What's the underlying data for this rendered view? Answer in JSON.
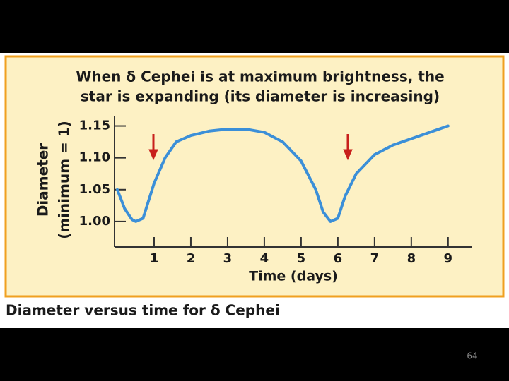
{
  "chart_data": {
    "type": "line",
    "title_lines": [
      "When δ Cephei is at maximum brightness, the",
      "star is expanding (its diameter is increasing)"
    ],
    "x_label": "Time (days)",
    "y_label_lines": [
      "Diameter",
      "(minimum = 1)"
    ],
    "x": [
      0,
      0.2,
      0.4,
      0.5,
      0.7,
      1.0,
      1.3,
      1.6,
      2.0,
      2.5,
      3.0,
      3.5,
      4.0,
      4.5,
      5.0,
      5.4,
      5.6,
      5.8,
      6.0,
      6.2,
      6.5,
      7.0,
      7.5,
      8.0,
      8.5,
      9.0
    ],
    "series": [
      {
        "color": "#3b8fd8",
        "values": [
          1.05,
          1.02,
          1.003,
          1.0,
          1.005,
          1.06,
          1.1,
          1.125,
          1.135,
          1.142,
          1.145,
          1.145,
          1.14,
          1.125,
          1.095,
          1.05,
          1.015,
          1.0,
          1.005,
          1.04,
          1.075,
          1.105,
          1.12,
          1.13,
          1.14,
          1.15
        ]
      }
    ],
    "xlim": [
      0,
      9.6
    ],
    "xticks": [
      1,
      2,
      3,
      4,
      5,
      6,
      7,
      8,
      9
    ],
    "ylim": [
      0.96,
      1.165
    ],
    "yticks": [
      {
        "value": 1,
        "label": "1.00"
      },
      1.05,
      {
        "value": 1.1,
        "label": "1.10"
      },
      1.15
    ],
    "grid": false
  },
  "caption": "Diameter versus time for δ Cephei",
  "page_number": "64"
}
